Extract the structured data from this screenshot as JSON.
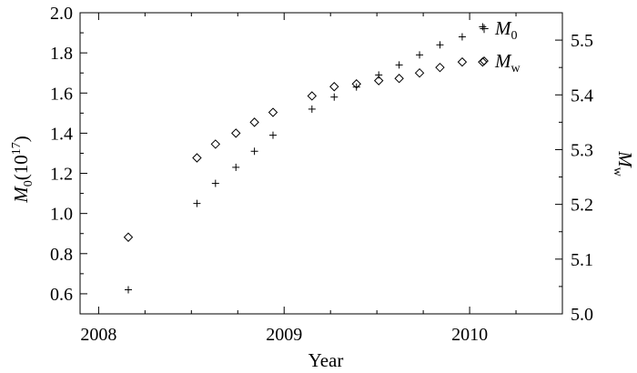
{
  "chart_data": {
    "type": "scatter",
    "xlabel": "Year",
    "ylabel_left": {
      "base": "M",
      "sub": "0",
      "rest": "(10",
      "sup": "17",
      "end": ")"
    },
    "ylabel_right": {
      "base": "M",
      "sub": "w"
    },
    "xlim": [
      2007.9,
      2010.5
    ],
    "ylim_left": [
      0.5,
      2.0
    ],
    "ylim_right": [
      5.0,
      5.55
    ],
    "x_ticks": [
      2008,
      2009,
      2010
    ],
    "x_minor_ticks": [
      2008.25,
      2008.5,
      2008.75,
      2009.25,
      2009.5,
      2009.75,
      2010.25
    ],
    "y_left_ticks": [
      0.6,
      0.8,
      1.0,
      1.2,
      1.4,
      1.6,
      1.8,
      2.0
    ],
    "y_left_tick_labels": [
      "0.6",
      "0.8",
      "1.0",
      "1.2",
      "1.4",
      "1.6",
      "1.8",
      "2.0"
    ],
    "y_right_ticks": [
      5.0,
      5.1,
      5.2,
      5.3,
      5.4,
      5.5
    ],
    "y_right_tick_labels": [
      "5.0",
      "5.1",
      "5.2",
      "5.3",
      "5.4",
      "5.5"
    ],
    "grid": false,
    "legend_position": "top-right",
    "series": [
      {
        "name": {
          "base": "M",
          "sub": "0"
        },
        "axis": "left",
        "marker": "plus",
        "x": [
          2008.16,
          2008.53,
          2008.63,
          2008.74,
          2008.84,
          2008.94,
          2009.15,
          2009.27,
          2009.39,
          2009.51,
          2009.62,
          2009.73,
          2009.84,
          2009.96,
          2010.07
        ],
        "y": [
          0.62,
          1.05,
          1.15,
          1.23,
          1.31,
          1.39,
          1.52,
          1.58,
          1.63,
          1.69,
          1.74,
          1.79,
          1.84,
          1.88,
          1.93
        ]
      },
      {
        "name": {
          "base": "M",
          "sub": "w"
        },
        "axis": "right",
        "marker": "diamond",
        "x": [
          2008.16,
          2008.53,
          2008.63,
          2008.74,
          2008.84,
          2008.94,
          2009.15,
          2009.27,
          2009.39,
          2009.51,
          2009.62,
          2009.73,
          2009.84,
          2009.96,
          2010.07
        ],
        "y": [
          5.14,
          5.285,
          5.31,
          5.33,
          5.35,
          5.368,
          5.398,
          5.415,
          5.42,
          5.426,
          5.43,
          5.44,
          5.45,
          5.46,
          5.46
        ]
      }
    ]
  }
}
